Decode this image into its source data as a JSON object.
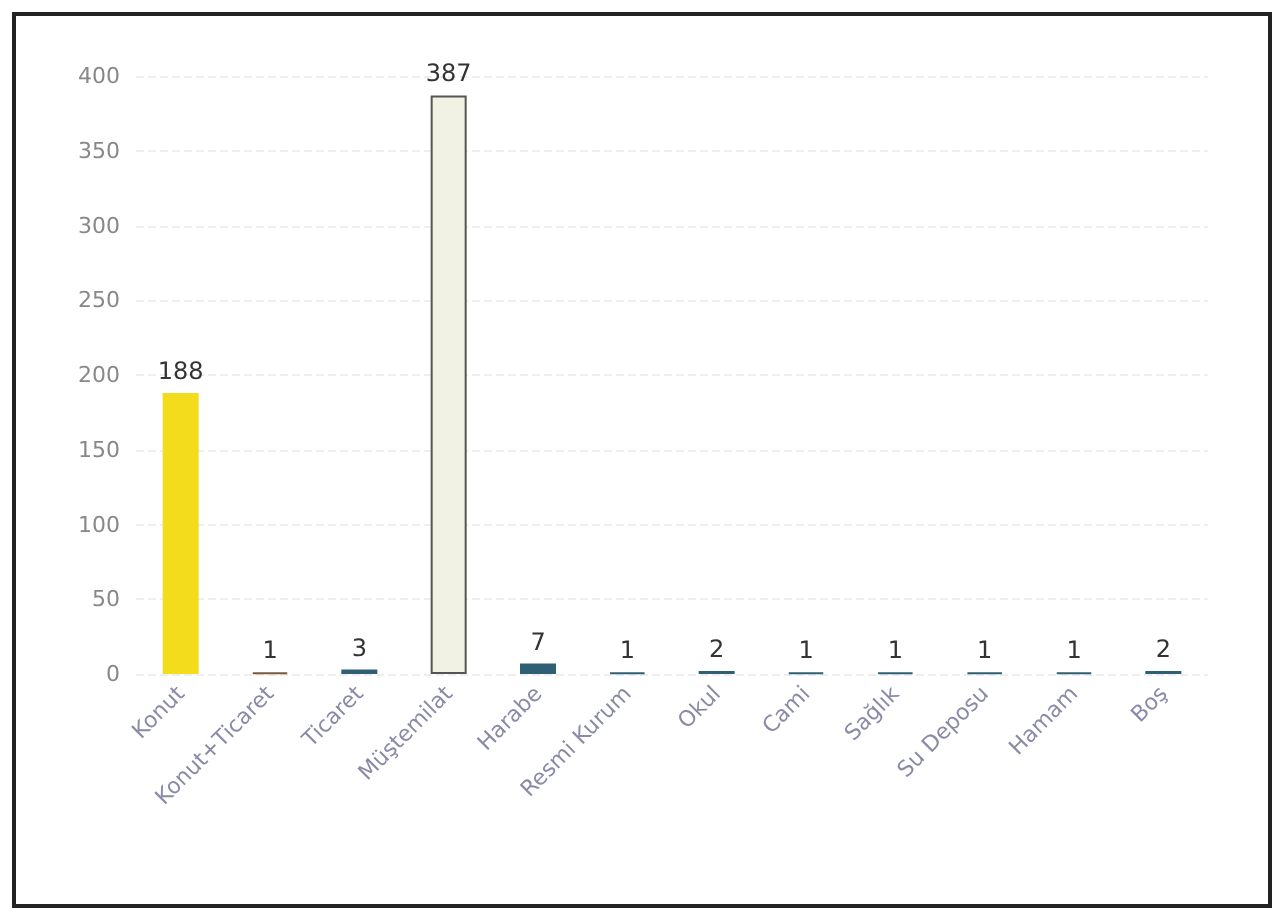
{
  "chart_data": {
    "type": "bar",
    "categories": [
      "Konut",
      "Konut+Ticaret",
      "Ticaret",
      "Müştemilat",
      "Harabe",
      "Resmi Kurum",
      "Okul",
      "Cami",
      "Sağlık",
      "Su Deposu",
      "Hamam",
      "Boş"
    ],
    "values": [
      188,
      1,
      3,
      387,
      7,
      1,
      2,
      1,
      1,
      1,
      1,
      2
    ],
    "colors": [
      "#f2dc1c",
      "#7a5a3c",
      "#2e5f73",
      "#f2f2e4",
      "#2e5f73",
      "#2e5f73",
      "#2e5f73",
      "#2e5f73",
      "#2e5f73",
      "#2e5f73",
      "#2e5f73",
      "#2e5f73"
    ],
    "ylim": [
      0,
      400
    ],
    "yticks": [
      0,
      50,
      100,
      150,
      200,
      250,
      300,
      350,
      400
    ],
    "grid": "y",
    "data_labels": true
  }
}
